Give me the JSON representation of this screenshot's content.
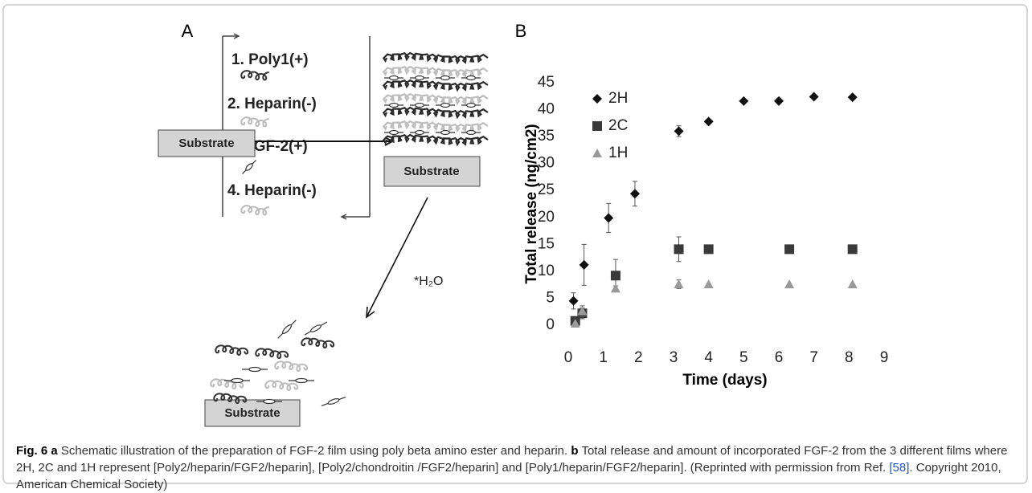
{
  "panel_a": {
    "label": "A",
    "steps": [
      "1. Poly1(+)",
      "2. Heparin(-)",
      "3. FGF-2(+)",
      "4. Heparin(-)"
    ],
    "substrate": "Substrate",
    "water": "*H₂O"
  },
  "chart_data": {
    "type": "scatter",
    "panel_label": "B",
    "x_label": "Time (days)",
    "y_label": "Total release (ng/cm2)",
    "xlim": [
      0,
      9
    ],
    "xticks": [
      0,
      1,
      2,
      3,
      4,
      5,
      6,
      7,
      8,
      9
    ],
    "ylim": [
      0,
      45
    ],
    "yticks": [
      0,
      5,
      10,
      15,
      20,
      25,
      30,
      35,
      40,
      45
    ],
    "grid": false,
    "legend": "upper left",
    "series": [
      {
        "name": "2H",
        "color": "#111111",
        "marker": "diamond",
        "x": [
          0.15,
          0.45,
          1.15,
          1.9,
          3.15,
          4,
          5,
          6,
          7,
          8.1
        ],
        "values": [
          4.5,
          11.2,
          19.9,
          24.4,
          36,
          37.8,
          41.6,
          41.6,
          42.4,
          42.3
        ],
        "errors": [
          1.5,
          3.8,
          2.7,
          2.3,
          1,
          0,
          0,
          0,
          0,
          0
        ]
      },
      {
        "name": "2C",
        "color": "#3a3a3a",
        "marker": "square",
        "x": [
          0.2,
          0.4,
          1.35,
          3.15,
          4,
          6.3,
          8.1
        ],
        "values": [
          0.8,
          2.2,
          9.2,
          14.1,
          14.1,
          14.1,
          14.1
        ],
        "errors": [
          0.5,
          1,
          3,
          2.3,
          0,
          0,
          0
        ]
      },
      {
        "name": "1H",
        "color": "#9a9a9a",
        "marker": "triangle",
        "x": [
          0.2,
          0.4,
          1.35,
          3.15,
          4,
          6.3,
          8.1
        ],
        "values": [
          0.3,
          2.6,
          6.8,
          7.6,
          7.6,
          7.6,
          7.6
        ],
        "errors": [
          0.3,
          1,
          0.5,
          0.8,
          0,
          0,
          0
        ]
      }
    ]
  },
  "caption": {
    "figure": "Fig. 6",
    "a": "a",
    "a_text": "Schematic illustration of the preparation of FGF-2 film using poly beta amino ester and heparin.",
    "b": "b",
    "b_text": "Total release and amount of incorporated FGF-2 from the 3 different films where 2H, 2C and 1H represent [Poly2/heparin/FGF2/heparin], [Poly2/chondroitin /FGF2/heparin] and [Poly1/heparin/FGF2/heparin]. (Reprinted with permission from Ref.",
    "ref": "[58]",
    "b_end": ". Copyright 2010, American Chemical Society)"
  }
}
